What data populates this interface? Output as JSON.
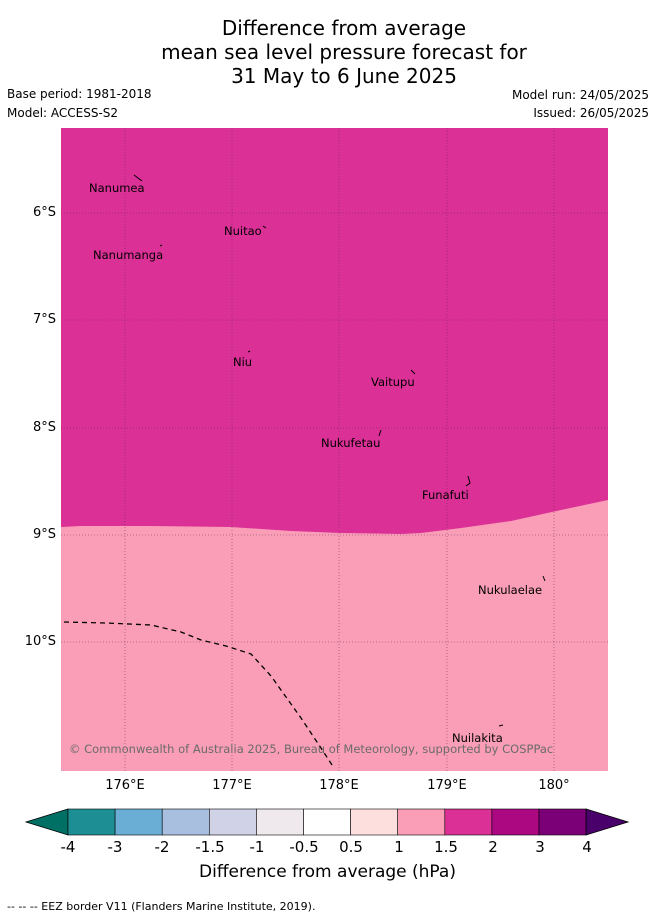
{
  "title": {
    "line1": "Difference from average",
    "line2": "mean sea level pressure forecast for",
    "line3": "31 May to 6 June 2025"
  },
  "meta": {
    "base_period": "Base period: 1981-2018",
    "model": "Model: ACCESS-S2",
    "model_run": "Model run: 24/05/2025",
    "issued": "Issued: 26/05/2025"
  },
  "map": {
    "lon_range": [
      175.5,
      180.5
    ],
    "lat_range": [
      -11.2,
      -5.4
    ],
    "lat_ticks": [
      "6°S",
      "7°S",
      "8°S",
      "9°S",
      "10°S"
    ],
    "lon_ticks": [
      "176°E",
      "177°E",
      "178°E",
      "179°E",
      "180°"
    ],
    "region_colors": {
      "upper": "#db3096",
      "lower": "#f99eb6"
    },
    "places": [
      {
        "name": "Nanumea",
        "lon": 176.12,
        "lat": -5.69
      },
      {
        "name": "Nuitao",
        "lon": 177.3,
        "lat": -6.12
      },
      {
        "name": "Nanumanga",
        "lon": 176.32,
        "lat": -6.29
      },
      {
        "name": "Niu",
        "lon": 177.16,
        "lat": -7.29
      },
      {
        "name": "Vaitupu",
        "lon": 178.68,
        "lat": -7.48
      },
      {
        "name": "Nukufetau",
        "lon": 178.4,
        "lat": -8.03
      },
      {
        "name": "Funafuti",
        "lon": 179.2,
        "lat": -8.52
      },
      {
        "name": "Nukulaelae",
        "lon": 179.83,
        "lat": -9.38
      },
      {
        "name": "Nuilakita",
        "lon": 179.48,
        "lat": -10.78
      }
    ],
    "credit": "© Commonwealth of Australia 2025, Bureau of Meteorology, supported by COSPPac"
  },
  "colorbar": {
    "tick_labels": [
      "-4",
      "-3",
      "-2",
      "-1.5",
      "-1",
      "-0.5",
      "0.5",
      "1",
      "1.5",
      "2",
      "3",
      "4"
    ],
    "colors": [
      "#1d8f94",
      "#6aaed6",
      "#a8bfe0",
      "#d0d2e8",
      "#efe9ee",
      "#ffffff",
      "#fde0de",
      "#f99eb6",
      "#db3096",
      "#ab0881",
      "#7b0077"
    ],
    "under_color": "#007064",
    "over_color": "#4a006a",
    "label": "Difference from average (hPa)"
  },
  "footnote": "-- -- -- EEZ border V11 (Flanders Marine Institute, 2019)."
}
